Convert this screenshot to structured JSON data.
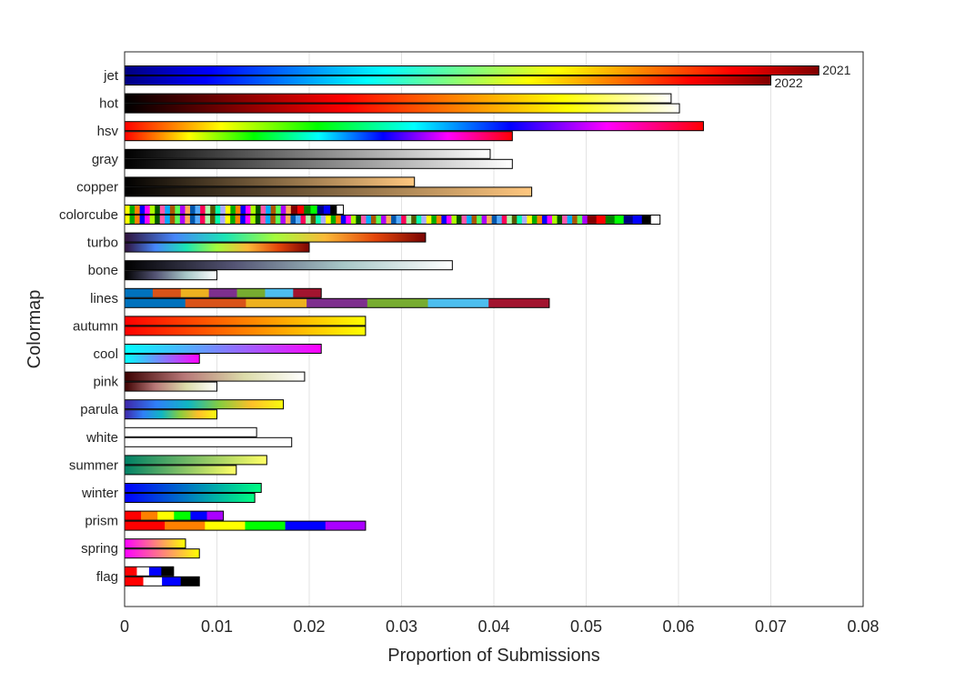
{
  "chart_data": {
    "type": "bar",
    "orientation": "horizontal",
    "xlabel": "Proportion of Submissions",
    "ylabel": "Colormap",
    "xlim": [
      0,
      0.08
    ],
    "xticks": [
      "0",
      "0.01",
      "0.02",
      "0.03",
      "0.04",
      "0.05",
      "0.06",
      "0.07",
      "0.08"
    ],
    "grid": "vertical",
    "categories": [
      "jet",
      "hot",
      "hsv",
      "gray",
      "copper",
      "colorcube",
      "turbo",
      "bone",
      "lines",
      "autumn",
      "cool",
      "pink",
      "parula",
      "white",
      "summer",
      "winter",
      "prism",
      "spring",
      "flag"
    ],
    "series": [
      {
        "name": "2021",
        "values": [
          0.0752,
          0.0592,
          0.0627,
          0.0396,
          0.0314,
          0.0237,
          0.0326,
          0.0355,
          0.0213,
          0.0261,
          0.0213,
          0.0195,
          0.0172,
          0.0143,
          0.0154,
          0.0148,
          0.0107,
          0.0066,
          0.0053
        ]
      },
      {
        "name": "2022",
        "values": [
          0.07,
          0.0601,
          0.042,
          0.042,
          0.0441,
          0.058,
          0.02,
          0.01,
          0.046,
          0.0261,
          0.0081,
          0.01,
          0.01,
          0.0181,
          0.0121,
          0.0141,
          0.0261,
          0.0081,
          0.0081
        ]
      }
    ],
    "colormaps": {
      "jet": [
        "#00007f",
        "#0000ff",
        "#007fff",
        "#00ffff",
        "#7fff7f",
        "#ffff00",
        "#ff7f00",
        "#ff0000",
        "#7f0000"
      ],
      "hot": [
        "#000000",
        "#800000",
        "#ff0000",
        "#ff8000",
        "#ffff00",
        "#ffffff"
      ],
      "hsv": [
        "#ff0000",
        "#ffff00",
        "#00ff00",
        "#00ffff",
        "#0000ff",
        "#ff00ff",
        "#ff0000"
      ],
      "gray": [
        "#000000",
        "#ffffff"
      ],
      "copper": [
        "#000000",
        "#ffc77f"
      ],
      "turbo": [
        "#30123b",
        "#4686fb",
        "#1be5b5",
        "#a4fc3c",
        "#fbb938",
        "#e4460a",
        "#7a0403"
      ],
      "bone": [
        "#000000",
        "#545474",
        "#a7c7c7",
        "#ffffff"
      ],
      "autumn": [
        "#ff0000",
        "#ffff00"
      ],
      "cool": [
        "#00ffff",
        "#ff00ff"
      ],
      "pink": [
        "#3c0000",
        "#b87878",
        "#dcdcaa",
        "#ffffff"
      ],
      "parula": [
        "#3e26a8",
        "#2f7ff8",
        "#0fb6c3",
        "#88cc3f",
        "#fec02a",
        "#f9fb0e"
      ],
      "white": [
        "#ffffff",
        "#ffffff"
      ],
      "summer": [
        "#008066",
        "#ffff66"
      ],
      "winter": [
        "#0000ff",
        "#00ff80"
      ],
      "spring": [
        "#ff00ff",
        "#ffff00"
      ],
      "lines": [
        "#0072bd",
        "#d95319",
        "#edb120",
        "#7e2f8e",
        "#77ac30",
        "#4dbeee",
        "#a2142f"
      ],
      "prism": [
        "#ff0000",
        "#ff8000",
        "#ffff00",
        "#00ff00",
        "#0000ff",
        "#aa00ff"
      ],
      "flag": [
        "#ff0000",
        "#ffffff",
        "#0000ff",
        "#000000"
      ],
      "colorcube": [
        "#ffff00",
        "#00aa00",
        "#ff8000",
        "#0000ff",
        "#ff00ff",
        "#aaff00",
        "#005500",
        "#ff55aa",
        "#00aaff",
        "#aa5500",
        "#55ff55",
        "#aa00ff",
        "#ffaa55",
        "#0055aa",
        "#55aaff",
        "#ff0055",
        "#aaffaa",
        "#555500",
        "#00ffaa",
        "#aaaaff"
      ],
      "colorcube_tail": [
        "#800000",
        "#ff0000",
        "#008000",
        "#00ff00",
        "#000080",
        "#0000ff",
        "#000000",
        "#ffffff"
      ]
    },
    "colormap_styles": {
      "lines": "segments",
      "prism": "segments",
      "flag": "segments",
      "colorcube": "striped"
    }
  }
}
